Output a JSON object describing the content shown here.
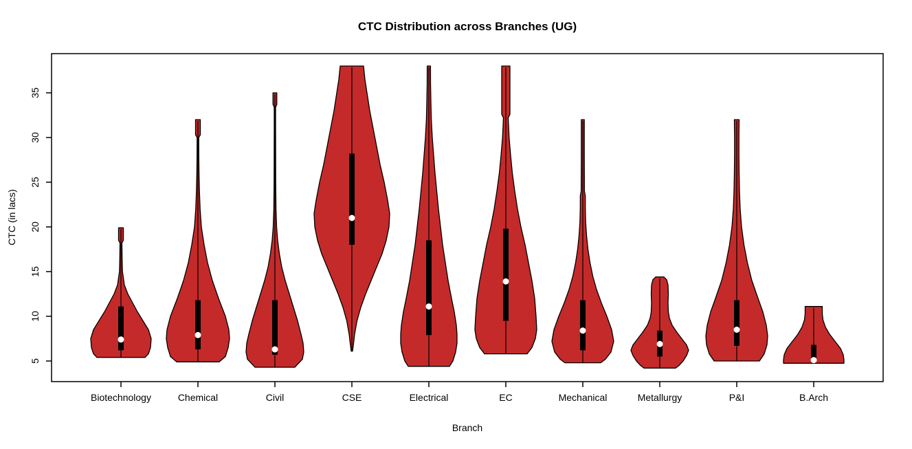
{
  "title": "CTC Distribution across Branches (UG)",
  "chart_data": {
    "type": "violin",
    "title": "CTC Distribution across Branches (UG)",
    "xlabel": "Branch",
    "ylabel": "CTC (in lacs)",
    "y_ticks": [
      5,
      10,
      15,
      20,
      25,
      30,
      35
    ],
    "ylim": [
      2.7,
      39.4
    ],
    "grid": false,
    "legend": "none",
    "colors": {
      "violin_fill": "#C42A2A",
      "outline": "#000000",
      "box": "#000000",
      "median_dot": "#FFFFFF",
      "text": "#000000",
      "background": "#FFFFFF"
    },
    "categories": [
      "Biotechnology",
      "Chemical",
      "Civil",
      "CSE",
      "Electrical",
      "EC",
      "Mechanical",
      "Metallurgy",
      "P&I",
      "B.Arch"
    ],
    "profile_format": "[CTC value in lacs, violin half-width in px], listed top to bottom",
    "violins": [
      {
        "branch": "Biotechnology",
        "min": 5.4,
        "q1": 6.2,
        "median": 7.4,
        "q3": 11.1,
        "max": 20,
        "profile": [
          [
            19.9,
            3.5
          ],
          [
            18.5,
            3.5
          ],
          [
            18.2,
            1.4
          ],
          [
            16.5,
            1.7
          ],
          [
            15,
            2.2
          ],
          [
            13.5,
            5
          ],
          [
            12.5,
            10
          ],
          [
            11.5,
            17
          ],
          [
            10.5,
            24
          ],
          [
            9.5,
            32
          ],
          [
            8.5,
            40
          ],
          [
            7.5,
            44
          ],
          [
            6.5,
            43
          ],
          [
            5.8,
            40
          ],
          [
            5.4,
            35
          ]
        ]
      },
      {
        "branch": "Chemical",
        "min": 4.9,
        "q1": 6.3,
        "median": 7.9,
        "q3": 11.8,
        "max": 32,
        "profile": [
          [
            32,
            3.5
          ],
          [
            30.3,
            3.5
          ],
          [
            30,
            1.2
          ],
          [
            28,
            1.3
          ],
          [
            26,
            1.6
          ],
          [
            24,
            2.2
          ],
          [
            22,
            3.2
          ],
          [
            20,
            5
          ],
          [
            18,
            9
          ],
          [
            16,
            14
          ],
          [
            14,
            21
          ],
          [
            12,
            30
          ],
          [
            10,
            40
          ],
          [
            8.5,
            45
          ],
          [
            7.5,
            46
          ],
          [
            6.5,
            44
          ],
          [
            5.5,
            40
          ],
          [
            4.9,
            31
          ]
        ]
      },
      {
        "branch": "Civil",
        "min": 4.3,
        "q1": 5.7,
        "median": 6.3,
        "q3": 11.8,
        "max": 35,
        "profile": [
          [
            35,
            2.8
          ],
          [
            33.7,
            2.8
          ],
          [
            33.4,
            1.0
          ],
          [
            31,
            1.0
          ],
          [
            28,
            1.1
          ],
          [
            25,
            1.2
          ],
          [
            22,
            1.6
          ],
          [
            20,
            2.5
          ],
          [
            18.5,
            4
          ],
          [
            17,
            6.5
          ],
          [
            15.5,
            10
          ],
          [
            14,
            15
          ],
          [
            12.5,
            21
          ],
          [
            11,
            27
          ],
          [
            9.5,
            33
          ],
          [
            8,
            38
          ],
          [
            7,
            41
          ],
          [
            6,
            42
          ],
          [
            5.2,
            40
          ],
          [
            4.3,
            29
          ]
        ]
      },
      {
        "branch": "CSE",
        "min": 6,
        "q1": 18,
        "median": 21,
        "q3": 28.2,
        "max": 38,
        "profile": [
          [
            38,
            17
          ],
          [
            36.5,
            19
          ],
          [
            35,
            22
          ],
          [
            33,
            26
          ],
          [
            31,
            31
          ],
          [
            29,
            36
          ],
          [
            27,
            41
          ],
          [
            25,
            47
          ],
          [
            23,
            52
          ],
          [
            21.5,
            55
          ],
          [
            20,
            54
          ],
          [
            18.5,
            50
          ],
          [
            17,
            44
          ],
          [
            15.5,
            36
          ],
          [
            14,
            28
          ],
          [
            12.5,
            20
          ],
          [
            11,
            13
          ],
          [
            9.5,
            7.5
          ],
          [
            8,
            4
          ],
          [
            7,
            2.5
          ],
          [
            6.1,
            1
          ]
        ]
      },
      {
        "branch": "Electrical",
        "min": 4.4,
        "q1": 7.9,
        "median": 11.1,
        "q3": 18.5,
        "max": 38,
        "profile": [
          [
            38,
            2.4
          ],
          [
            36,
            2.5
          ],
          [
            34,
            3
          ],
          [
            32,
            3.6
          ],
          [
            30,
            5
          ],
          [
            28,
            7
          ],
          [
            26,
            9
          ],
          [
            24,
            11.5
          ],
          [
            22,
            14
          ],
          [
            20,
            17
          ],
          [
            18,
            20
          ],
          [
            16,
            24
          ],
          [
            14,
            28
          ],
          [
            12,
            33
          ],
          [
            10.5,
            37
          ],
          [
            9,
            40
          ],
          [
            8,
            41
          ],
          [
            7,
            41
          ],
          [
            6,
            39
          ],
          [
            5,
            35
          ],
          [
            4.4,
            30
          ]
        ]
      },
      {
        "branch": "EC",
        "min": 5.8,
        "q1": 9.5,
        "median": 13.9,
        "q3": 19.8,
        "max": 38,
        "profile": [
          [
            38,
            6
          ],
          [
            32.6,
            6
          ],
          [
            32.2,
            3.5
          ],
          [
            30,
            4.8
          ],
          [
            28,
            7
          ],
          [
            26,
            9.5
          ],
          [
            24,
            13
          ],
          [
            22,
            17
          ],
          [
            20,
            22
          ],
          [
            18,
            28
          ],
          [
            16,
            33
          ],
          [
            14,
            38
          ],
          [
            12,
            42
          ],
          [
            10,
            44
          ],
          [
            8.5,
            45
          ],
          [
            7.5,
            43
          ],
          [
            6.5,
            38
          ],
          [
            5.8,
            31
          ]
        ]
      },
      {
        "branch": "Mechanical",
        "min": 4.8,
        "q1": 6.2,
        "median": 8.4,
        "q3": 11.8,
        "max": 32,
        "profile": [
          [
            32,
            2.2
          ],
          [
            30,
            2.2
          ],
          [
            28,
            2.2
          ],
          [
            26,
            2.3
          ],
          [
            24,
            2.4
          ],
          [
            23.5,
            3.6
          ],
          [
            22,
            3.7
          ],
          [
            20.5,
            4.2
          ],
          [
            19,
            5.5
          ],
          [
            17.5,
            7.5
          ],
          [
            16,
            10.5
          ],
          [
            14.5,
            14.5
          ],
          [
            13,
            20
          ],
          [
            11.5,
            27
          ],
          [
            10,
            35
          ],
          [
            8.5,
            42
          ],
          [
            7.2,
            45
          ],
          [
            6,
            41
          ],
          [
            5.2,
            33
          ],
          [
            4.8,
            26
          ]
        ]
      },
      {
        "branch": "Metallurgy",
        "min": 4.2,
        "q1": 5.5,
        "median": 6.9,
        "q3": 8.4,
        "max": 14.4,
        "profile": [
          [
            14.4,
            6
          ],
          [
            14.1,
            10
          ],
          [
            13.5,
            12
          ],
          [
            12.5,
            12.5
          ],
          [
            11.5,
            12
          ],
          [
            10.5,
            12.5
          ],
          [
            9.8,
            14
          ],
          [
            9,
            18
          ],
          [
            8.2,
            25
          ],
          [
            7.5,
            32
          ],
          [
            6.8,
            39
          ],
          [
            6.2,
            42
          ],
          [
            5.6,
            39
          ],
          [
            5,
            34
          ],
          [
            4.5,
            28
          ],
          [
            4.2,
            23
          ]
        ]
      },
      {
        "branch": "P&I",
        "min": 5.0,
        "q1": 6.7,
        "median": 8.5,
        "q3": 11.8,
        "max": 32,
        "profile": [
          [
            32,
            3.5
          ],
          [
            30,
            3.2
          ],
          [
            28,
            3.2
          ],
          [
            26,
            3.5
          ],
          [
            24,
            4
          ],
          [
            22,
            5
          ],
          [
            20,
            7
          ],
          [
            18,
            10.5
          ],
          [
            16,
            15.5
          ],
          [
            14,
            22
          ],
          [
            12,
            31
          ],
          [
            10.5,
            38
          ],
          [
            9,
            43
          ],
          [
            7.8,
            45
          ],
          [
            6.8,
            44
          ],
          [
            5.8,
            40
          ],
          [
            5,
            33
          ]
        ]
      },
      {
        "branch": "B.Arch",
        "min": 4.8,
        "q1": 5.0,
        "median": 5.1,
        "q3": 6.8,
        "max": 11.1,
        "profile": [
          [
            11.1,
            12.5
          ],
          [
            10.3,
            12.5
          ],
          [
            9.6,
            13.5
          ],
          [
            8.8,
            17
          ],
          [
            8,
            23
          ],
          [
            7.2,
            31
          ],
          [
            6.4,
            39
          ],
          [
            5.7,
            43
          ],
          [
            5.1,
            44
          ],
          [
            4.75,
            44
          ]
        ]
      }
    ]
  }
}
